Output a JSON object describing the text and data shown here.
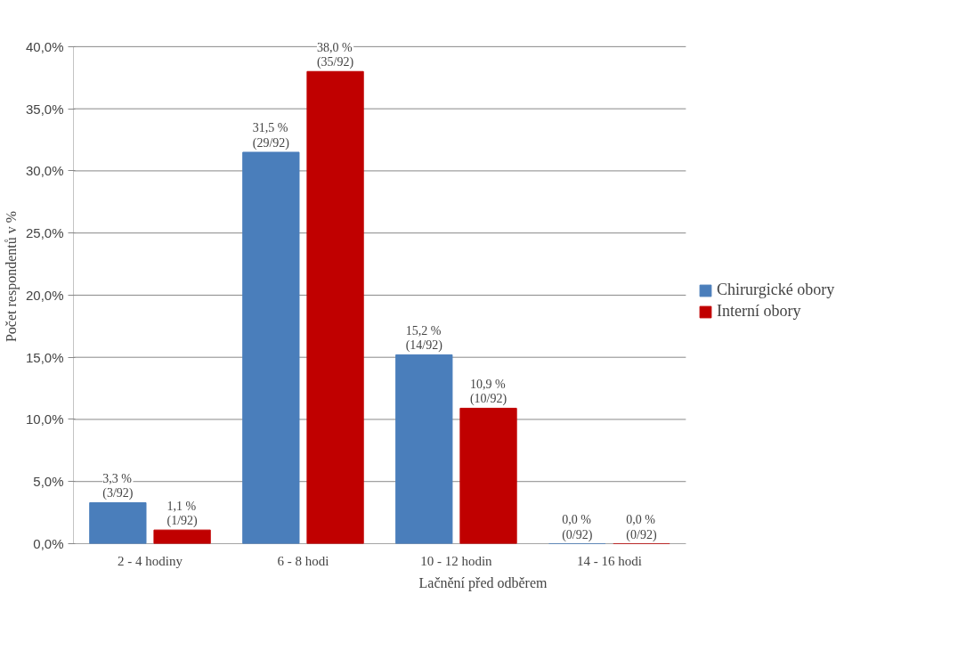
{
  "chart_data": {
    "type": "bar",
    "xlabel": "Lačnění před odběrem",
    "ylabel": "Počet respondentů v %",
    "categories": [
      "2 - 4 hodiny",
      "6 - 8 hodi",
      "10 - 12 hodin",
      "14 - 16 hodi"
    ],
    "series": [
      {
        "name": "Chirurgické obory",
        "color": "#4a7ebb",
        "values": [
          3.3,
          31.5,
          15.2,
          0.0
        ],
        "value_labels": [
          "3,3 %\n(3/92)",
          "31,5 %\n(29/92)",
          "15,2 %\n(14/92)",
          "0,0 %\n(0/92)"
        ]
      },
      {
        "name": "Interní obory",
        "color": "#c00000",
        "values": [
          1.1,
          38.0,
          10.9,
          0.0
        ],
        "value_labels": [
          "1,1 %\n(1/92)",
          "38,0 %\n(35/92)",
          "10,9 %\n(10/92)",
          "0,0 %\n(0/92)"
        ]
      }
    ],
    "ylim": [
      0,
      40
    ],
    "yticks": [
      {
        "value": 0,
        "label": "0,0%"
      },
      {
        "value": 5,
        "label": "5,0%"
      },
      {
        "value": 10,
        "label": "10,0%"
      },
      {
        "value": 15,
        "label": "15,0%"
      },
      {
        "value": 20,
        "label": "20,0%"
      },
      {
        "value": 25,
        "label": "25,0%"
      },
      {
        "value": 30,
        "label": "30,0%"
      },
      {
        "value": 35,
        "label": "35,0%"
      },
      {
        "value": 40,
        "label": "40,0%"
      }
    ],
    "grid": "y",
    "legend": "right"
  }
}
